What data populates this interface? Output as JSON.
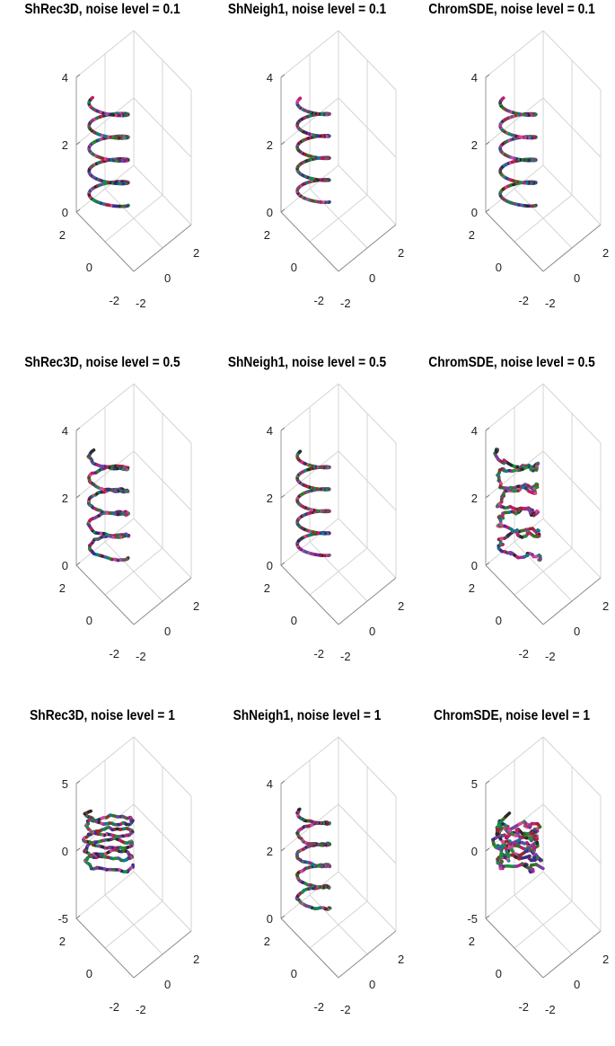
{
  "chart_data": [
    {
      "type": "line3d",
      "title": "ShRec3D, noise level = 0.1",
      "noise": 0.1,
      "zticks": [
        "0",
        "2",
        "4"
      ],
      "zlim": [
        0,
        4
      ],
      "xticks": [
        "-2",
        "0",
        "2"
      ],
      "yticks": [
        "-2",
        "0",
        "2"
      ],
      "series": [
        {
          "turns": 4.6,
          "radius": 1.1,
          "z": [
            0.2,
            3.3
          ],
          "jitter": 0.0
        }
      ]
    },
    {
      "type": "line3d",
      "title": "ShNeigh1, noise level = 0.1",
      "noise": 0.1,
      "zticks": [
        "0",
        "2",
        "4"
      ],
      "zlim": [
        0,
        4
      ],
      "xticks": [
        "-2",
        "0",
        "2"
      ],
      "yticks": [
        "-2",
        "0",
        "2"
      ],
      "series": [
        {
          "turns": 4.6,
          "radius": 0.9,
          "z": [
            0.3,
            3.3
          ],
          "jitter": 0.0
        }
      ]
    },
    {
      "type": "line3d",
      "title": "ChromSDE, noise level = 0.1",
      "noise": 0.1,
      "zticks": [
        "0",
        "2",
        "4"
      ],
      "zlim": [
        0,
        4
      ],
      "xticks": [
        "-2",
        "0",
        "2"
      ],
      "yticks": [
        "-2",
        "0",
        "2"
      ],
      "series": [
        {
          "turns": 4.6,
          "radius": 1.0,
          "z": [
            0.2,
            3.3
          ],
          "jitter": 0.0
        }
      ]
    },
    {
      "type": "line3d",
      "title": "ShRec3D, noise level = 0.5",
      "noise": 0.5,
      "zticks": [
        "0",
        "2",
        "4"
      ],
      "zlim": [
        0,
        4
      ],
      "xticks": [
        "-2",
        "0",
        "2"
      ],
      "yticks": [
        "-2",
        "0",
        "2"
      ],
      "series": [
        {
          "turns": 4.6,
          "radius": 1.1,
          "z": [
            0.2,
            3.3
          ],
          "jitter": 0.1
        }
      ]
    },
    {
      "type": "line3d",
      "title": "ShNeigh1, noise level = 0.5",
      "noise": 0.5,
      "zticks": [
        "0",
        "2",
        "4"
      ],
      "zlim": [
        0,
        4
      ],
      "xticks": [
        "-2",
        "0",
        "2"
      ],
      "yticks": [
        "-2",
        "0",
        "2"
      ],
      "series": [
        {
          "turns": 4.6,
          "radius": 0.9,
          "z": [
            0.3,
            3.3
          ],
          "jitter": 0.0
        }
      ]
    },
    {
      "type": "line3d",
      "title": "ChromSDE, noise level = 0.5",
      "noise": 0.5,
      "zticks": [
        "0",
        "2",
        "4"
      ],
      "zlim": [
        0,
        4
      ],
      "xticks": [
        "-2",
        "0",
        "2"
      ],
      "yticks": [
        "-2",
        "0",
        "2"
      ],
      "series": [
        {
          "turns": 4.6,
          "radius": 1.1,
          "z": [
            0.3,
            3.3
          ],
          "jitter": 0.35
        }
      ]
    },
    {
      "type": "line3d",
      "title": "ShRec3D, noise level = 1",
      "noise": 1,
      "zticks": [
        "-5",
        "0",
        "5"
      ],
      "zlim": [
        -5,
        5
      ],
      "xticks": [
        "-2",
        "0",
        "2"
      ],
      "yticks": [
        "-2",
        "0",
        "2"
      ],
      "series": [
        {
          "turns": 4.6,
          "radius": 1.3,
          "z": [
            -1.2,
            2.8
          ],
          "jitter": 0.18
        }
      ]
    },
    {
      "type": "line3d",
      "title": "ShNeigh1, noise level = 1",
      "noise": 1,
      "zticks": [
        "0",
        "2",
        "4"
      ],
      "zlim": [
        0,
        4
      ],
      "xticks": [
        "-2",
        "0",
        "2"
      ],
      "yticks": [
        "-2",
        "0",
        "2"
      ],
      "series": [
        {
          "turns": 4.6,
          "radius": 0.9,
          "z": [
            0.3,
            3.2
          ],
          "jitter": 0.08
        }
      ]
    },
    {
      "type": "line3d",
      "title": "ChromSDE, noise level = 1",
      "noise": 1,
      "zticks": [
        "-5",
        "0",
        "5"
      ],
      "zlim": [
        -5,
        5
      ],
      "xticks": [
        "-2",
        "0",
        "2"
      ],
      "yticks": [
        "-2",
        "0",
        "2"
      ],
      "series": [
        {
          "turns": 4.6,
          "radius": 1.1,
          "z": [
            -1.0,
            2.0
          ],
          "jitter": 0.5
        }
      ]
    }
  ]
}
